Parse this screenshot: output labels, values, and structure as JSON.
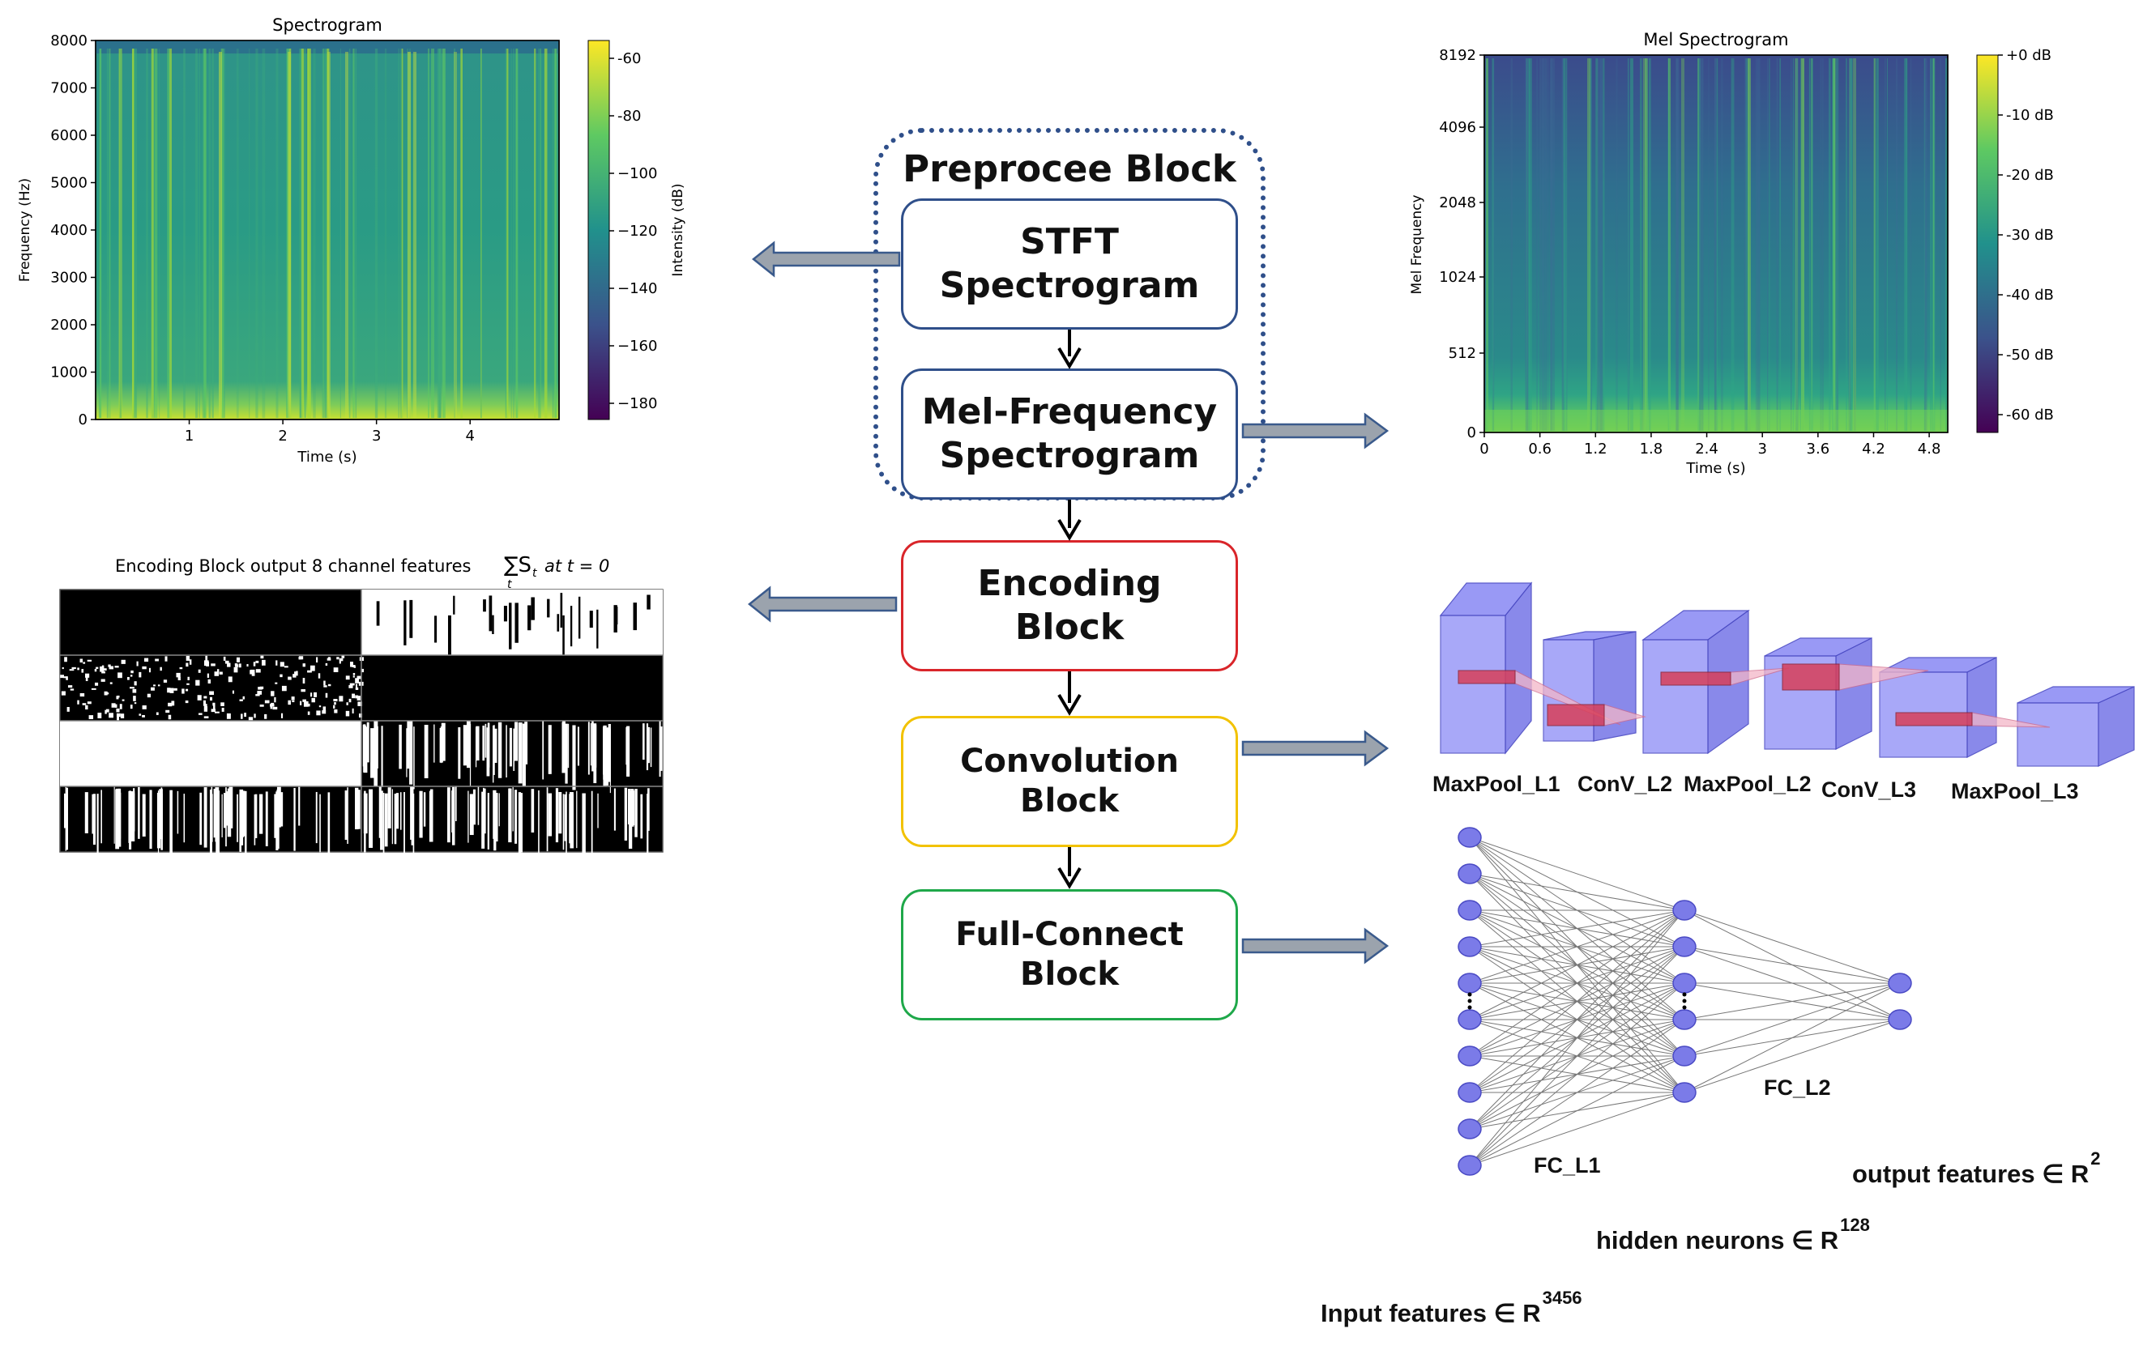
{
  "spectrogram": {
    "title": "Spectrogram",
    "ylabel": "Frequency (Hz)",
    "xlabel": "Time (s)",
    "yticks": [
      "0",
      "1000",
      "2000",
      "3000",
      "4000",
      "5000",
      "6000",
      "7000",
      "8000"
    ],
    "xticks": [
      "1",
      "2",
      "3",
      "4"
    ],
    "colorbar_label": "Intensity (dB)",
    "colorbar_ticks": [
      "-60",
      "-80",
      "−100",
      "−120",
      "−140",
      "−160",
      "−180"
    ]
  },
  "mel_spectrogram": {
    "title": "Mel Spectrogram",
    "ylabel": "Mel Frequency",
    "xlabel": "Time (s)",
    "yticks": [
      "0",
      "512",
      "1024",
      "2048",
      "4096",
      "8192"
    ],
    "xticks": [
      "0",
      "0.6",
      "1.2",
      "1.8",
      "2.4",
      "3",
      "3.6",
      "4.2",
      "4.8"
    ],
    "colorbar_ticks": [
      "+0 dB",
      "-10 dB",
      "-20 dB",
      "-30 dB",
      "-40 dB",
      "-50 dB",
      "-60 dB"
    ]
  },
  "encoding_output": {
    "title": "Encoding Block output 8 channel features",
    "formula": "∑S",
    "formula_sub_t": "t",
    "formula_tail": "at t = 0",
    "formula_under": "t"
  },
  "blocks": {
    "preprocess_title": "Preprocee Block",
    "stft_line1": "STFT",
    "stft_line2": "Spectrogram",
    "mel_line1": "Mel-Frequency",
    "mel_line2": "Spectrogram",
    "encoding_line1": "Encoding",
    "encoding_line2": "Block",
    "conv_line1": "Convolution",
    "conv_line2": "Block",
    "fc_line1": "Full-Connect",
    "fc_line2": "Block"
  },
  "cnn_layers": [
    "MaxPool_L1",
    "ConV_L2",
    "MaxPool_L2",
    "ConV_L3",
    "MaxPool_L3"
  ],
  "fc": {
    "l1_label": "FC_L1",
    "l2_label": "FC_L2",
    "output_text": "output features ∈ R",
    "output_sup": "2",
    "hidden_text": "hidden neurons ∈ R",
    "hidden_sup": "128",
    "input_text": "Input features ∈ R",
    "input_sup": "3456",
    "input_nodes": 10,
    "hidden_nodes": 6,
    "output_nodes": 2
  },
  "colors": {
    "preprocess_border": "#2f4f8a",
    "stft_border": "#2f4f8a",
    "encoding_border": "#d9252a",
    "conv_border": "#f2c200",
    "fc_border": "#1fa84a",
    "arrow_fill": "#9ba3ad",
    "arrow_stroke": "#3a5a8c",
    "neuron": "#7b7be8",
    "cube": "#8f8ff5"
  }
}
